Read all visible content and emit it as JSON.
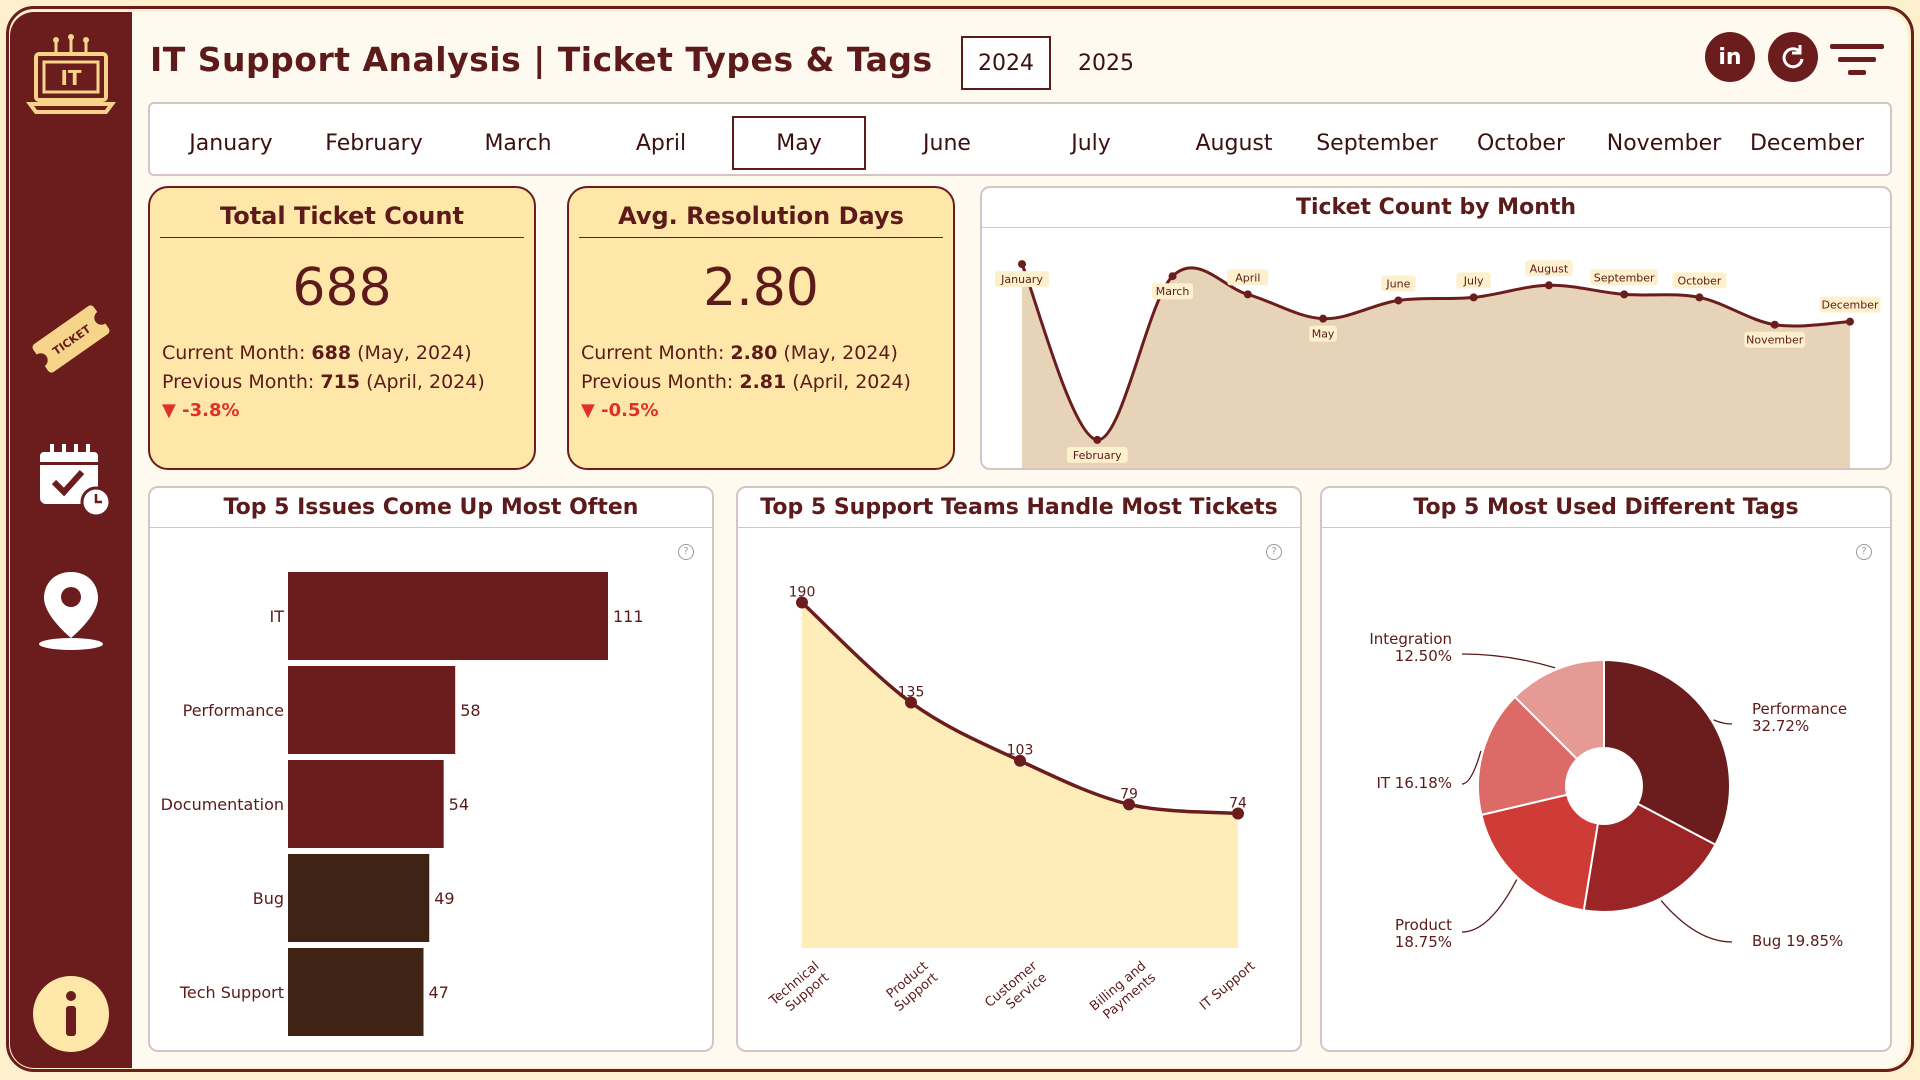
{
  "header": {
    "title": "IT Support Analysis | Ticket Types & Tags",
    "years": [
      "2024",
      "2025"
    ],
    "selected_year": "2024"
  },
  "sidebar": {
    "logo_text": "IT",
    "ticket_icon_text": "TICKET"
  },
  "months": {
    "items": [
      "January",
      "February",
      "March",
      "April",
      "May",
      "June",
      "July",
      "August",
      "September",
      "October",
      "November",
      "December"
    ],
    "selected": "May"
  },
  "kpis": [
    {
      "title": "Total Ticket Count",
      "value": "688",
      "current_label": "Current Month:",
      "current_value": "688",
      "current_period": "(May, 2024)",
      "previous_label": "Previous Month:",
      "previous_value": "715",
      "previous_period": "(April, 2024)",
      "delta": "▼ -3.8%"
    },
    {
      "title": "Avg. Resolution Days",
      "value": "2.80",
      "current_label": "Current Month:",
      "current_value": "2.80",
      "current_period": "(May, 2024)",
      "previous_label": "Previous Month:",
      "previous_value": "2.81",
      "previous_period": "(April, 2024)",
      "delta": "▼ -0.5%"
    }
  ],
  "colors": {
    "primary": "#6b1d1d",
    "dark_bar": "#3f2416",
    "area_fill": "#e7d3b8",
    "yellow_fill": "#feedb8",
    "negative": "#e0302e"
  },
  "chart_data": [
    {
      "type": "area",
      "title": "Ticket Count by Month",
      "categories": [
        "January",
        "February",
        "March",
        "April",
        "May",
        "June",
        "July",
        "August",
        "September",
        "October",
        "November",
        "December"
      ],
      "values": [
        2.07,
        1.78,
        2.05,
        2.02,
        1.98,
        2.01,
        2.015,
        2.035,
        2.02,
        2.015,
        1.97,
        1.975
      ],
      "point_labels": [
        "January",
        "February",
        "March",
        "April",
        "May",
        "June",
        "July",
        "August",
        "September",
        "October",
        "November",
        "December"
      ]
    },
    {
      "type": "bar",
      "orientation": "horizontal",
      "title": "Top 5 Issues Come Up Most Often",
      "categories": [
        "IT",
        "Performance",
        "Documentation",
        "Bug",
        "Tech Support"
      ],
      "values": [
        111,
        58,
        54,
        49,
        47
      ]
    },
    {
      "type": "area",
      "title": "Top 5 Support Teams Handle Most Tickets",
      "categories": [
        "Technical Support",
        "Product Support",
        "Customer Service",
        "Billing and Payments",
        "IT Support"
      ],
      "values": [
        190,
        135,
        103,
        79,
        74
      ]
    },
    {
      "type": "pie",
      "title": "Top 5 Most Used Different Tags",
      "labels": [
        "Performance",
        "Bug",
        "Product",
        "IT",
        "Integration"
      ],
      "values": [
        32.72,
        19.85,
        18.75,
        16.18,
        12.5
      ],
      "label_text": [
        "Performance 32.72%",
        "Bug 19.85%",
        "Product 18.75%",
        "IT 16.18%",
        "Integration 12.50%"
      ],
      "colors": [
        "#6b1d1d",
        "#9b2426",
        "#cf3b36",
        "#dc6a66",
        "#e59a96"
      ]
    }
  ]
}
